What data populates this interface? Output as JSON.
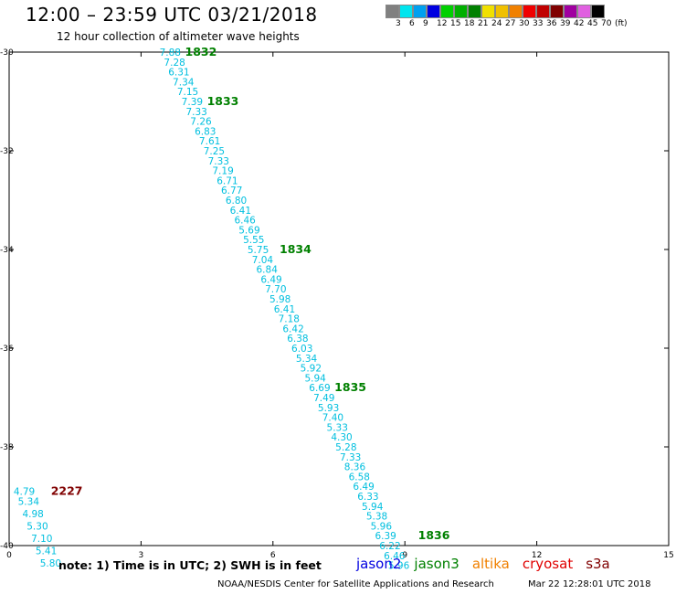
{
  "header": {
    "title": "12:00 – 23:59 UTC 03/21/2018",
    "subtitle": "12 hour collection of altimeter wave heights"
  },
  "legend": {
    "colors": [
      "#808080",
      "#00e5ee",
      "#00a0f0",
      "#0000e0",
      "#00d000",
      "#00b000",
      "#008000",
      "#f0e000",
      "#f0c000",
      "#f08000",
      "#f00000",
      "#c00000",
      "#800000",
      "#a000a0",
      "#e060e0",
      "#000000"
    ],
    "labels": [
      "3",
      "6",
      "9",
      "12",
      "15",
      "18",
      "21",
      "24",
      "27",
      "30",
      "33",
      "36",
      "39",
      "42",
      "45",
      "70",
      "(ft)"
    ]
  },
  "chart_data": {
    "type": "scatter",
    "title": "12:00 – 23:59 UTC 03/21/2018",
    "subtitle": "12 hour collection of altimeter wave heights",
    "xlim": [
      0,
      15
    ],
    "ylim": [
      -40,
      -30
    ],
    "x_ticks": [
      "0",
      "3",
      "6",
      "9",
      "12",
      "15"
    ],
    "x_tick_values": [
      0,
      3,
      6,
      9,
      12,
      15
    ],
    "y_ticks": [
      "-30",
      "-32",
      "-34",
      "-36",
      "-38",
      "-40"
    ],
    "y_tick_values": [
      -30,
      -32,
      -34,
      -36,
      -38,
      -40
    ],
    "value_color": "#00bfdf",
    "tracks": [
      {
        "values": [
          {
            "text": "7.88",
            "x": 3.42,
            "y": -30.0
          },
          {
            "text": "7.28",
            "x": 3.52,
            "y": -30.2
          },
          {
            "text": "6.31",
            "x": 3.62,
            "y": -30.4
          },
          {
            "text": "7.34",
            "x": 3.72,
            "y": -30.6
          },
          {
            "text": "7.15",
            "x": 3.82,
            "y": -30.8
          },
          {
            "text": "7.39",
            "x": 3.92,
            "y": -31.0
          },
          {
            "text": "7.33",
            "x": 4.02,
            "y": -31.2
          },
          {
            "text": "7.26",
            "x": 4.12,
            "y": -31.4
          },
          {
            "text": "6.83",
            "x": 4.22,
            "y": -31.6
          },
          {
            "text": "7.61",
            "x": 4.32,
            "y": -31.8
          },
          {
            "text": "7.25",
            "x": 4.42,
            "y": -32.0
          },
          {
            "text": "7.33",
            "x": 4.52,
            "y": -32.2
          },
          {
            "text": "7.19",
            "x": 4.62,
            "y": -32.4
          },
          {
            "text": "6.71",
            "x": 4.72,
            "y": -32.6
          },
          {
            "text": "6.77",
            "x": 4.82,
            "y": -32.8
          },
          {
            "text": "6.80",
            "x": 4.92,
            "y": -33.0
          },
          {
            "text": "6.41",
            "x": 5.02,
            "y": -33.2
          },
          {
            "text": "6.46",
            "x": 5.12,
            "y": -33.4
          },
          {
            "text": "5.69",
            "x": 5.22,
            "y": -33.6
          },
          {
            "text": "5.55",
            "x": 5.32,
            "y": -33.8
          },
          {
            "text": "5.75",
            "x": 5.42,
            "y": -34.0
          },
          {
            "text": "7.04",
            "x": 5.52,
            "y": -34.2
          },
          {
            "text": "6.84",
            "x": 5.62,
            "y": -34.4
          },
          {
            "text": "6.49",
            "x": 5.72,
            "y": -34.6
          },
          {
            "text": "7.70",
            "x": 5.82,
            "y": -34.8
          },
          {
            "text": "5.98",
            "x": 5.92,
            "y": -35.0
          },
          {
            "text": "6.41",
            "x": 6.02,
            "y": -35.2
          },
          {
            "text": "7.18",
            "x": 6.12,
            "y": -35.4
          },
          {
            "text": "6.42",
            "x": 6.22,
            "y": -35.6
          },
          {
            "text": "6.38",
            "x": 6.32,
            "y": -35.8
          },
          {
            "text": "6.03",
            "x": 6.42,
            "y": -36.0
          },
          {
            "text": "5.34",
            "x": 6.52,
            "y": -36.2
          },
          {
            "text": "5.92",
            "x": 6.62,
            "y": -36.4
          },
          {
            "text": "5.94",
            "x": 6.72,
            "y": -36.6
          },
          {
            "text": "6.69",
            "x": 6.82,
            "y": -36.8
          },
          {
            "text": "7.49",
            "x": 6.92,
            "y": -37.0
          },
          {
            "text": "5.93",
            "x": 7.02,
            "y": -37.2
          },
          {
            "text": "7.40",
            "x": 7.12,
            "y": -37.4
          },
          {
            "text": "5.33",
            "x": 7.22,
            "y": -37.6
          },
          {
            "text": "4.30",
            "x": 7.32,
            "y": -37.8
          },
          {
            "text": "5.28",
            "x": 7.42,
            "y": -38.0
          },
          {
            "text": "7.33",
            "x": 7.52,
            "y": -38.2
          },
          {
            "text": "8.36",
            "x": 7.62,
            "y": -38.4
          },
          {
            "text": "6.58",
            "x": 7.72,
            "y": -38.6
          },
          {
            "text": "6.49",
            "x": 7.82,
            "y": -38.8
          },
          {
            "text": "6.33",
            "x": 7.92,
            "y": -39.0
          },
          {
            "text": "5.94",
            "x": 8.02,
            "y": -39.2
          },
          {
            "text": "5.38",
            "x": 8.12,
            "y": -39.4
          },
          {
            "text": "5.96",
            "x": 8.22,
            "y": -39.6
          },
          {
            "text": "6.39",
            "x": 8.32,
            "y": -39.8
          },
          {
            "text": "6.22",
            "x": 8.42,
            "y": -40.0
          },
          {
            "text": "6.46",
            "x": 8.52,
            "y": -40.2
          },
          {
            "text": "5.96",
            "x": 8.62,
            "y": -40.4
          }
        ],
        "times": [
          {
            "text": "1832",
            "x": 4.0,
            "y": -30.0,
            "color": "#008000"
          },
          {
            "text": "1833",
            "x": 4.5,
            "y": -31.0,
            "color": "#008000"
          },
          {
            "text": "1834",
            "x": 6.15,
            "y": -34.0,
            "color": "#008000"
          },
          {
            "text": "1835",
            "x": 7.4,
            "y": -36.8,
            "color": "#008000"
          },
          {
            "text": "1836",
            "x": 9.3,
            "y": -39.8,
            "color": "#008000"
          }
        ]
      },
      {
        "values": [
          {
            "text": "4.79",
            "x": 0.1,
            "y": -38.9
          },
          {
            "text": "5.34",
            "x": 0.2,
            "y": -39.1
          },
          {
            "text": "4.98",
            "x": 0.3,
            "y": -39.35
          },
          {
            "text": "5.30",
            "x": 0.4,
            "y": -39.6
          },
          {
            "text": "7.10",
            "x": 0.5,
            "y": -39.85
          },
          {
            "text": "5.41",
            "x": 0.6,
            "y": -40.1
          },
          {
            "text": "5.80",
            "x": 0.7,
            "y": -40.35
          }
        ],
        "times": [
          {
            "text": "2227",
            "x": 0.95,
            "y": -38.9,
            "color": "#800000"
          }
        ]
      }
    ]
  },
  "footer": {
    "note": "note:  1) Time is in UTC;  2) SWH is in feet",
    "satellites": [
      {
        "name": "jason2",
        "color": "#0000e0"
      },
      {
        "name": "jason3",
        "color": "#008000"
      },
      {
        "name": "altika",
        "color": "#f08000"
      },
      {
        "name": "cryosat",
        "color": "#e00000"
      },
      {
        "name": "s3a",
        "color": "#800000"
      }
    ],
    "credit": "NOAA/NESDIS Center for Satellite Applications and Research",
    "timestamp": "Mar 22 12:28:01 UTC 2018"
  }
}
